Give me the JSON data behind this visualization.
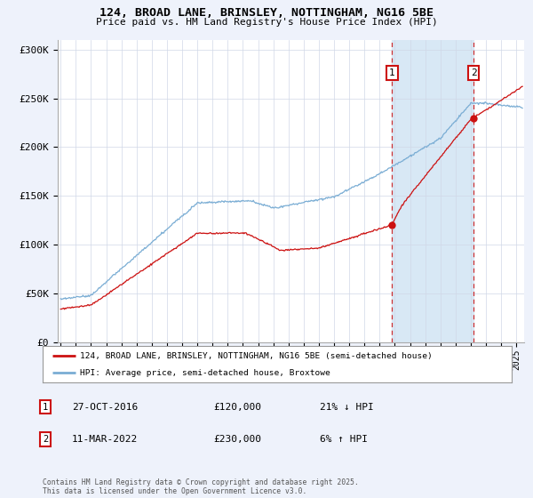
{
  "title_line1": "124, BROAD LANE, BRINSLEY, NOTTINGHAM, NG16 5BE",
  "title_line2": "Price paid vs. HM Land Registry's House Price Index (HPI)",
  "background_color": "#eef2fb",
  "plot_bg_color": "#ffffff",
  "red_color": "#cc1111",
  "blue_color": "#7aadd4",
  "vline_color": "#cc1111",
  "shade_color": "#d8e8f5",
  "purchase1_date_x": 2016.82,
  "purchase1_price": 120000,
  "purchase2_date_x": 2022.19,
  "purchase2_price": 230000,
  "legend1_label": "124, BROAD LANE, BRINSLEY, NOTTINGHAM, NG16 5BE (semi-detached house)",
  "legend2_label": "HPI: Average price, semi-detached house, Broxtowe",
  "annotation1_date": "27-OCT-2016",
  "annotation1_price": "£120,000",
  "annotation1_hpi": "21% ↓ HPI",
  "annotation2_date": "11-MAR-2022",
  "annotation2_price": "£230,000",
  "annotation2_hpi": "6% ↑ HPI",
  "footer": "Contains HM Land Registry data © Crown copyright and database right 2025.\nThis data is licensed under the Open Government Licence v3.0.",
  "ylim": [
    0,
    310000
  ],
  "xlim_start": 1994.8,
  "xlim_end": 2025.5,
  "yticks": [
    0,
    50000,
    100000,
    150000,
    200000,
    250000,
    300000
  ],
  "ytick_labels": [
    "£0",
    "£50K",
    "£100K",
    "£150K",
    "£200K",
    "£250K",
    "£300K"
  ]
}
